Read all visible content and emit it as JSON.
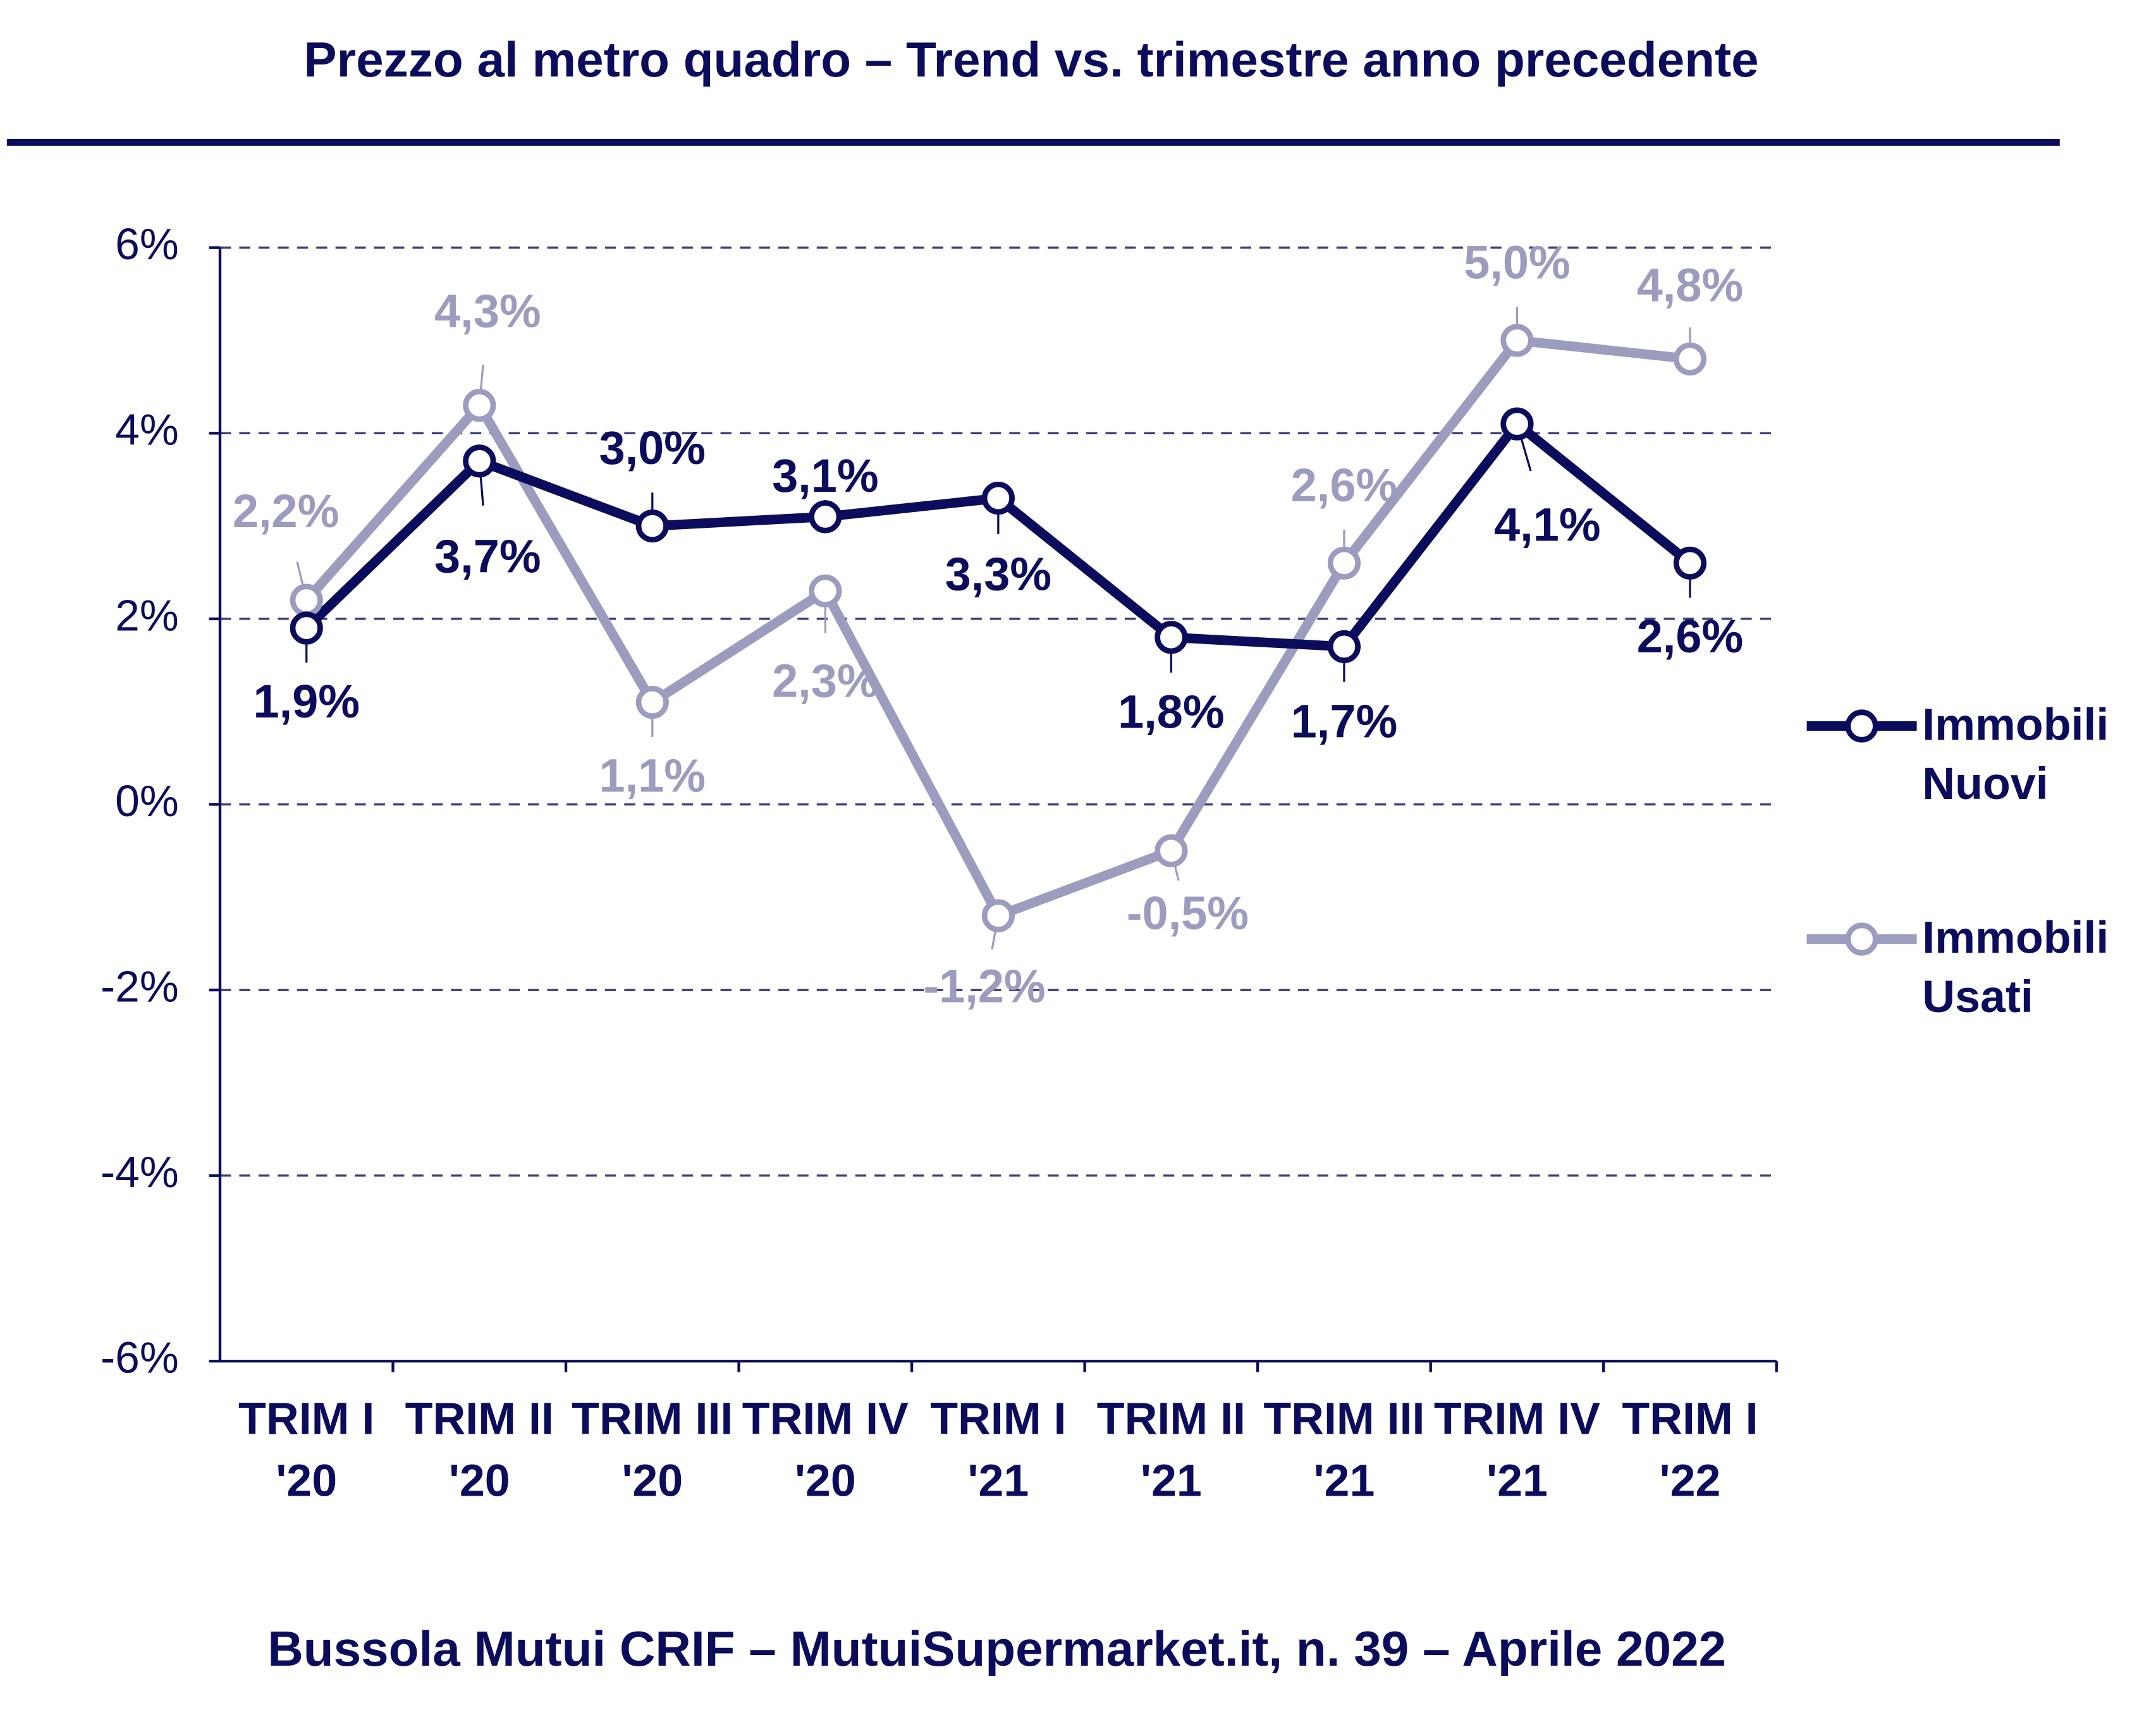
{
  "chart_data": {
    "type": "line",
    "title": "Prezzo al metro quadro – Trend vs. trimestre anno precedente",
    "footer": "Bussola Mutui CRIF – MutuiSupermarket.it, n. 39 – Aprile 2022",
    "categories": [
      "TRIM I '20",
      "TRIM II '20",
      "TRIM III '20",
      "TRIM IV '20",
      "TRIM I '21",
      "TRIM II '21",
      "TRIM III '21",
      "TRIM IV '21",
      "TRIM I '22"
    ],
    "series": [
      {
        "name": "Immobili Nuovi",
        "color": "#0c0c5c",
        "values": [
          1.9,
          3.7,
          3.0,
          3.1,
          3.3,
          1.8,
          1.7,
          4.1,
          2.6
        ],
        "value_labels": [
          "1,9%",
          "3,7%",
          "3,0%",
          "3,1%",
          "3,3%",
          "1,8%",
          "1,7%",
          "4,1%",
          "2,6%"
        ]
      },
      {
        "name": "Immobili Usati",
        "color": "#9c9cbf",
        "values": [
          2.2,
          4.3,
          1.1,
          2.3,
          -1.2,
          -0.5,
          2.6,
          5.0,
          4.8
        ],
        "value_labels": [
          "2,2%",
          "4,3%",
          "1,1%",
          "2,3%",
          "-1,2%",
          "-0,5%",
          "2,6%",
          "5,0%",
          "4,8%"
        ]
      }
    ],
    "ylim": [
      -6,
      6
    ],
    "yticks": [
      {
        "value": -6,
        "label": "-6%"
      },
      {
        "value": -4,
        "label": "-4%"
      },
      {
        "value": -2,
        "label": "-2%"
      },
      {
        "value": 0,
        "label": "0%"
      },
      {
        "value": 2,
        "label": "2%"
      },
      {
        "value": 4,
        "label": "4%"
      },
      {
        "value": 6,
        "label": "6%"
      }
    ],
    "grid": true,
    "legend": "right"
  }
}
